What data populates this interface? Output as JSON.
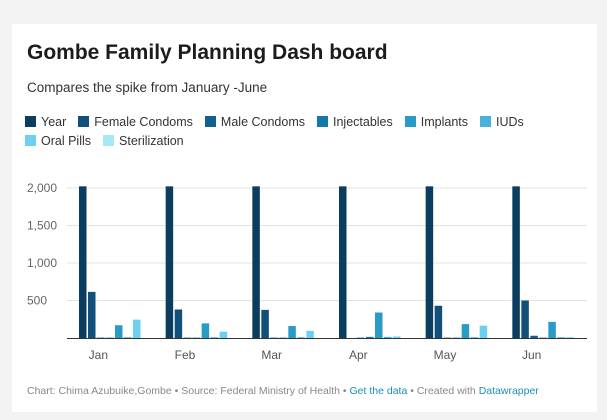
{
  "header": {
    "title": "Gombe Family Planning Dash board",
    "subtitle": "Compares the spike from January -June"
  },
  "footer": {
    "chart_by": "Chart: Chima Azubuike,Gombe",
    "sep1": " • ",
    "source": "Source: Federal Ministry of Health",
    "sep2": " • ",
    "get_data": "Get the data",
    "sep3": " • ",
    "created_with": "Created with ",
    "datawrapper": "Datawrapper"
  },
  "chart_data": {
    "type": "bar",
    "categories": [
      "Jan",
      "Feb",
      "Mar",
      "Apr",
      "May",
      "Jun"
    ],
    "ylim": [
      0,
      2000
    ],
    "yticks": [
      0,
      500,
      1000,
      1500,
      2000
    ],
    "ytick_labels": [
      "",
      "500",
      "1,000",
      "1,500",
      "2,000"
    ],
    "grid": true,
    "legend_position": "top",
    "series": [
      {
        "name": "Year",
        "color": "#0b3d5e",
        "values": [
          2022,
          2022,
          2022,
          2022,
          2022,
          2022
        ]
      },
      {
        "name": "Female Condoms",
        "color": "#11507a",
        "values": [
          615,
          380,
          375,
          0,
          430,
          500
        ]
      },
      {
        "name": "Male Condoms",
        "color": "#12608f",
        "values": [
          5,
          5,
          5,
          5,
          5,
          30
        ]
      },
      {
        "name": "Injectables",
        "color": "#1479a8",
        "values": [
          5,
          5,
          5,
          15,
          5,
          5
        ]
      },
      {
        "name": "Implants",
        "color": "#2a9bc6",
        "values": [
          170,
          195,
          160,
          340,
          185,
          215
        ]
      },
      {
        "name": "IUDs",
        "color": "#4ab1d8",
        "values": [
          10,
          10,
          10,
          15,
          10,
          10
        ]
      },
      {
        "name": "Oral Pills",
        "color": "#6dd0f0",
        "values": [
          245,
          85,
          95,
          20,
          165,
          10
        ]
      },
      {
        "name": "Sterilization",
        "color": "#a6e7f8",
        "values": [
          0,
          0,
          0,
          0,
          0,
          0
        ]
      }
    ]
  }
}
